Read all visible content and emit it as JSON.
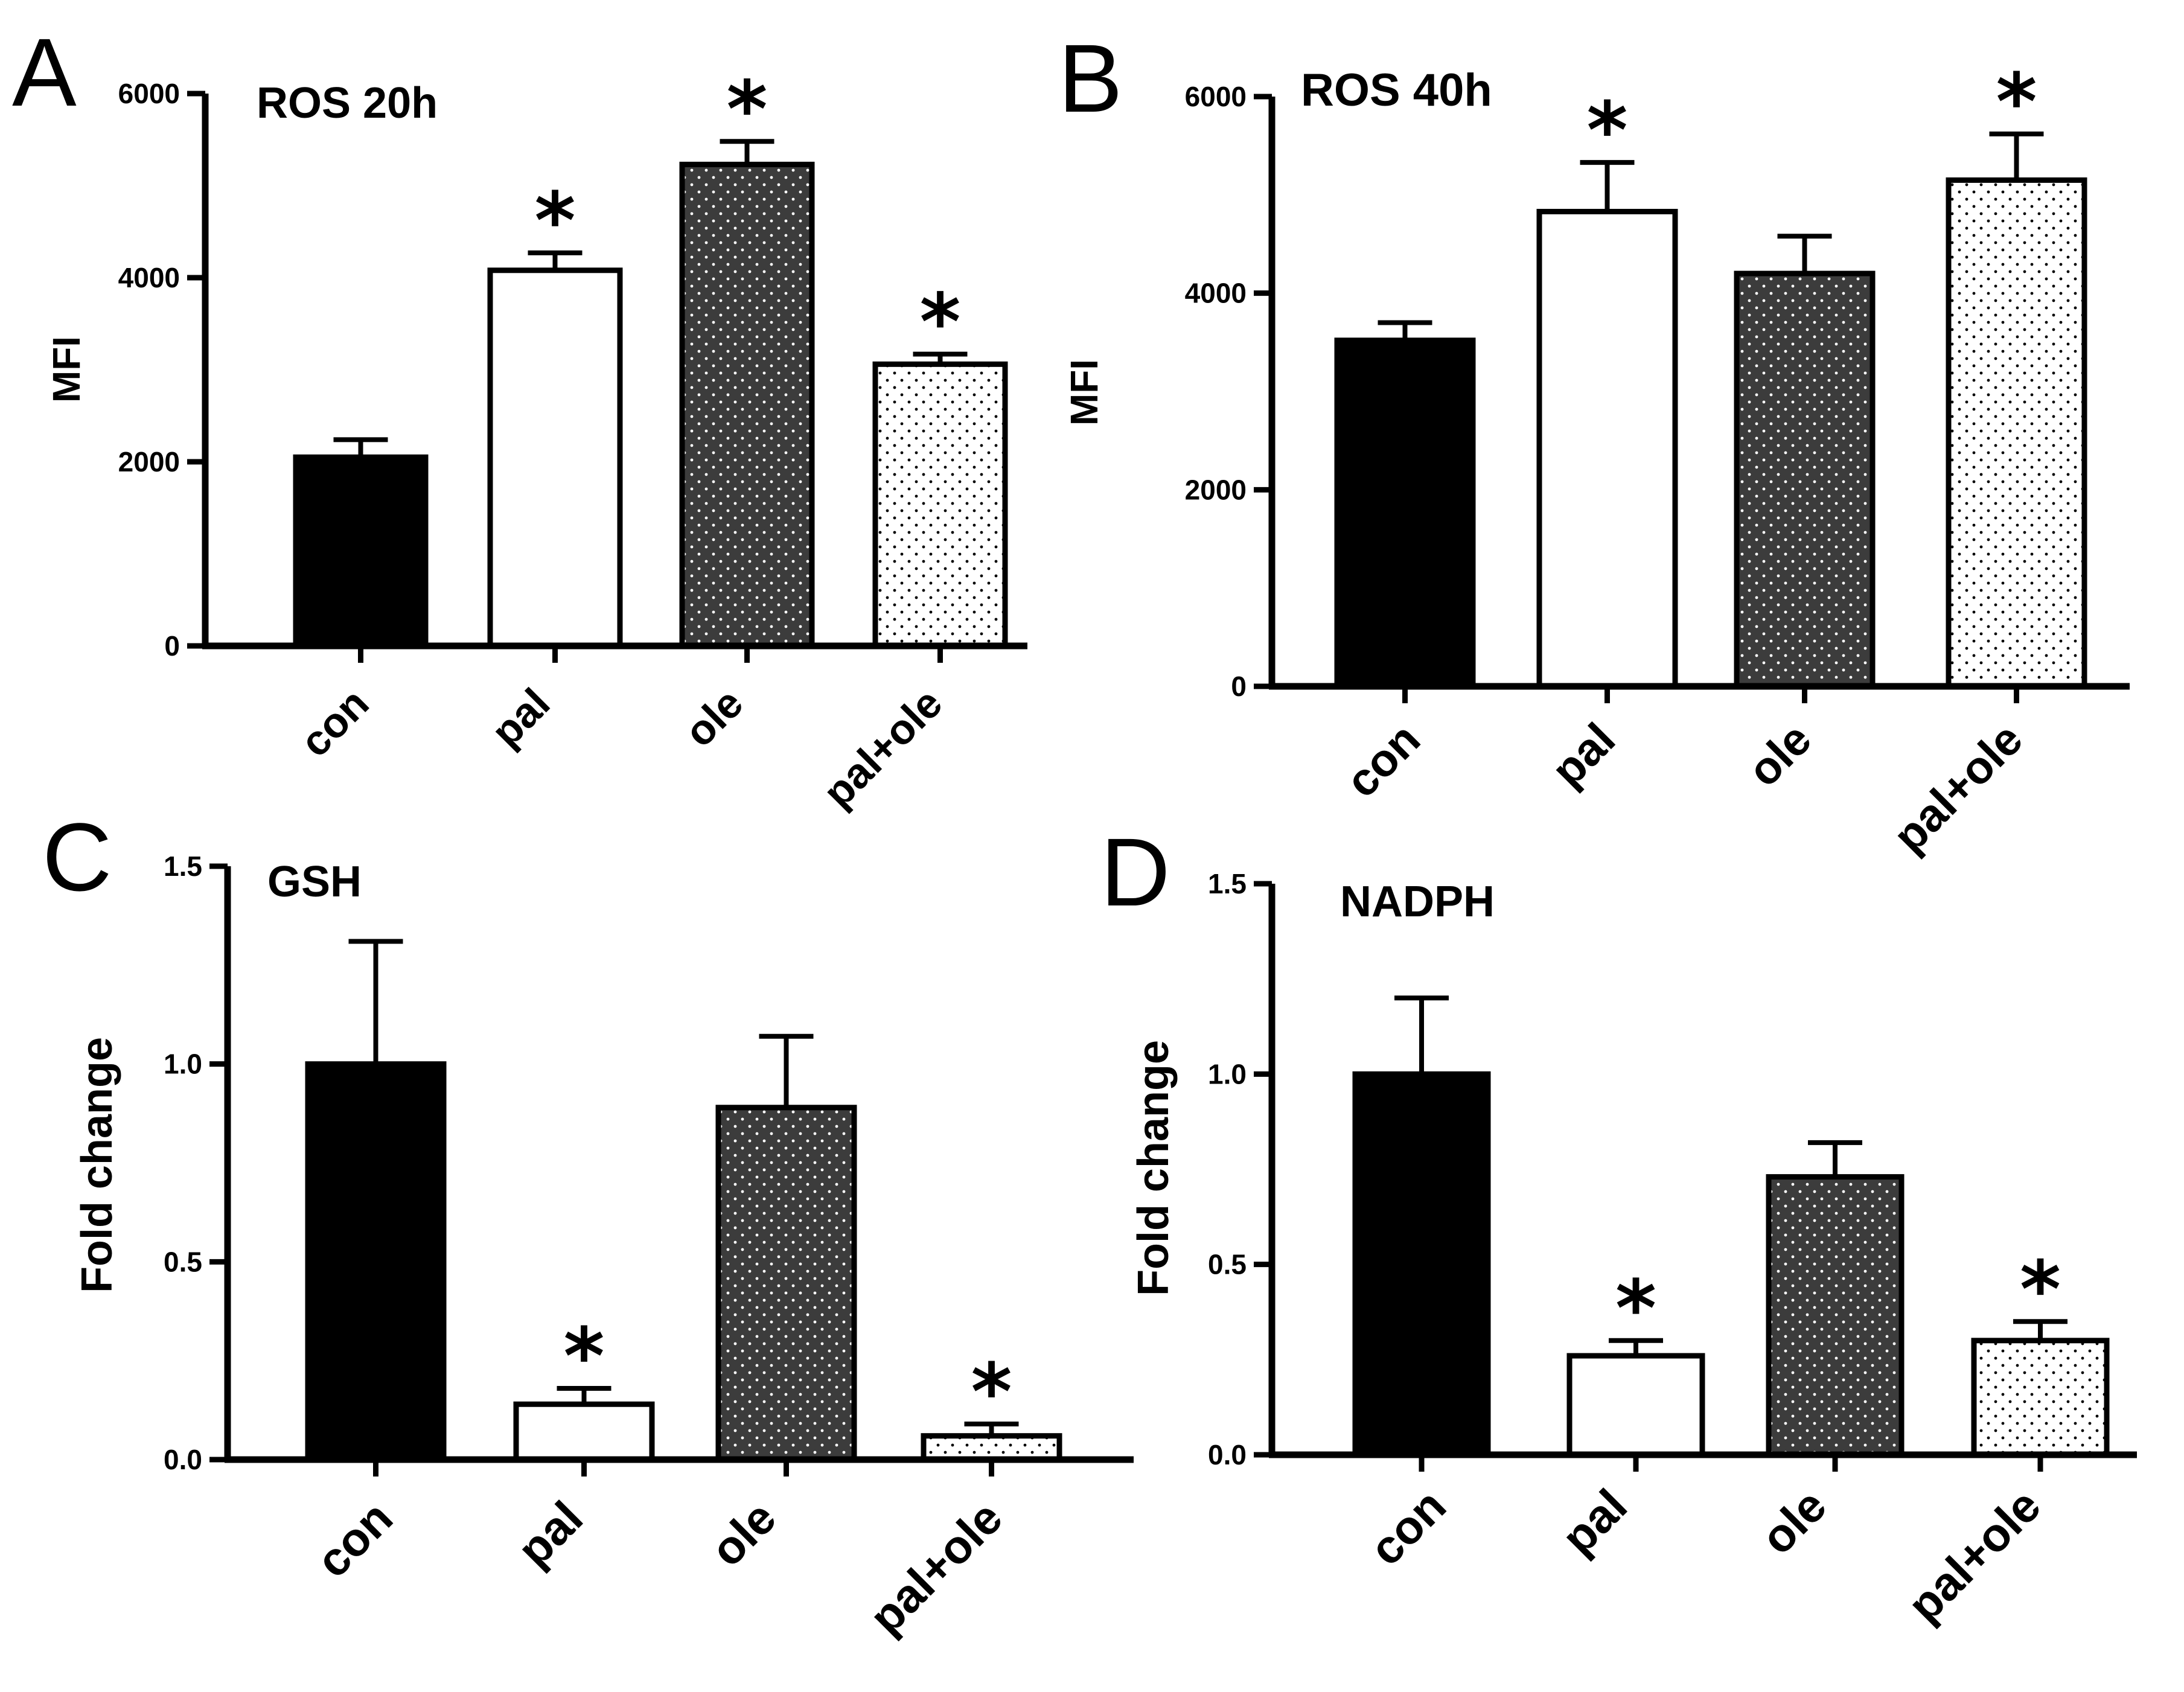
{
  "colors": {
    "con": "#000000",
    "pal": "#ffffff",
    "ole": "#3c3c3c",
    "pal_ole": "#f4f4f4",
    "stroke": "#000000"
  },
  "chart_data": [
    {
      "panel": "A",
      "type": "bar",
      "title": "ROS 20h",
      "ylabel": "MFI",
      "xlabel": "",
      "ylim": [
        0,
        6000
      ],
      "yticks": [
        0,
        2000,
        4000,
        6000
      ],
      "ytick_labels": [
        "0",
        "2000",
        "4000",
        "6000"
      ],
      "categories": [
        "con",
        "pal",
        "ole",
        "pal+ole"
      ],
      "values": [
        2050,
        4080,
        5230,
        3060
      ],
      "errors": [
        190,
        190,
        250,
        110
      ],
      "significance": [
        "",
        "*",
        "*",
        "*"
      ],
      "fills": [
        "con",
        "pal",
        "ole",
        "pal_ole"
      ],
      "grid": false
    },
    {
      "panel": "B",
      "type": "bar",
      "title": "ROS 40h",
      "ylabel": "MFI",
      "xlabel": "",
      "ylim": [
        0,
        6000
      ],
      "yticks": [
        0,
        2000,
        4000,
        6000
      ],
      "ytick_labels": [
        "0",
        "2000",
        "4000",
        "6000"
      ],
      "categories": [
        "con",
        "pal",
        "ole",
        "pal+ole"
      ],
      "values": [
        3520,
        4830,
        4200,
        5150
      ],
      "errors": [
        180,
        500,
        380,
        470
      ],
      "significance": [
        "",
        "*",
        "",
        "*"
      ],
      "fills": [
        "con",
        "pal",
        "ole",
        "pal_ole"
      ],
      "grid": false
    },
    {
      "panel": "C",
      "type": "bar",
      "title": "GSH",
      "ylabel": "Fold change",
      "xlabel": "",
      "ylim": [
        0,
        1.5
      ],
      "yticks": [
        0,
        0.5,
        1.0,
        1.5
      ],
      "ytick_labels": [
        "0.0",
        "0.5",
        "1.0",
        "1.5"
      ],
      "categories": [
        "con",
        "pal",
        "ole",
        "pal+ole"
      ],
      "values": [
        1.0,
        0.14,
        0.89,
        0.06
      ],
      "errors": [
        0.31,
        0.04,
        0.18,
        0.03
      ],
      "significance": [
        "",
        "*",
        "",
        "*"
      ],
      "fills": [
        "con",
        "pal",
        "ole",
        "pal_ole"
      ],
      "grid": false
    },
    {
      "panel": "D",
      "type": "bar",
      "title": "NADPH",
      "ylabel": "Fold change",
      "xlabel": "",
      "ylim": [
        0,
        1.5
      ],
      "yticks": [
        0,
        0.5,
        1.0,
        1.5
      ],
      "ytick_labels": [
        "0.0",
        "0.5",
        "1.0",
        "1.5"
      ],
      "categories": [
        "con",
        "pal",
        "ole",
        "pal+ole"
      ],
      "values": [
        1.0,
        0.26,
        0.73,
        0.3
      ],
      "errors": [
        0.2,
        0.04,
        0.09,
        0.05
      ],
      "significance": [
        "",
        "*",
        "",
        "*"
      ],
      "fills": [
        "con",
        "pal",
        "ole",
        "pal_ole"
      ],
      "grid": false
    }
  ]
}
